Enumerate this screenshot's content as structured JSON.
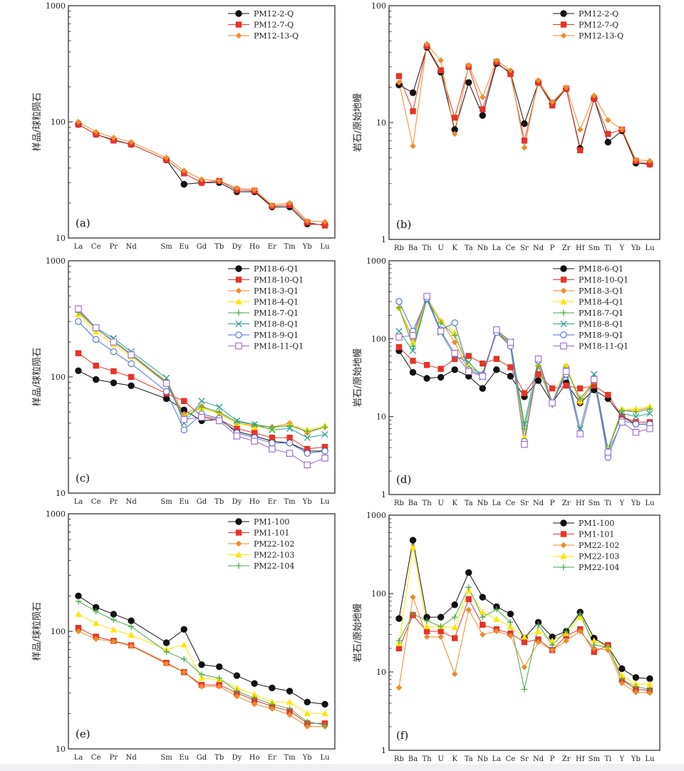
{
  "colors": {
    "black": "#111111",
    "red": "#e8332a",
    "orange": "#f08a2c",
    "yellow": "#ffe600",
    "green": "#4aa84a",
    "teal": "#2f9e8f",
    "blue": "#4a6fd8",
    "purple": "#9a6ac8"
  },
  "chart_data": [
    {
      "id": "a",
      "type": "line",
      "panel_label": "(a)",
      "ylabel": "样品/球粒陨石",
      "yscale": "log",
      "ylim": [
        10,
        1000
      ],
      "yticks": [
        "10",
        "100",
        "1000"
      ],
      "categories": [
        "La",
        "Ce",
        "Pr",
        "Nd",
        "",
        "Sm",
        "Eu",
        "Gd",
        "Tb",
        "Dy",
        "Ho",
        "Er",
        "Tm",
        "Yb",
        "Lu"
      ],
      "series": [
        {
          "name": "PM12-2-Q",
          "color": "black",
          "marker": "circle",
          "values": [
            95,
            78,
            70,
            64,
            null,
            47,
            29,
            30,
            30,
            25,
            25,
            18.5,
            18.5,
            13.2,
            13
          ]
        },
        {
          "name": "PM12-7-Q",
          "color": "red",
          "marker": "square",
          "values": [
            95,
            78,
            69,
            64,
            null,
            47,
            36,
            30,
            31,
            26,
            25.5,
            18.8,
            19.2,
            13.6,
            12.8
          ]
        },
        {
          "name": "PM12-13-Q",
          "color": "orange",
          "marker": "diamond",
          "values": [
            100,
            82,
            73,
            67,
            null,
            49,
            38,
            32,
            31,
            27,
            26,
            19.2,
            20,
            14,
            13.8
          ]
        }
      ]
    },
    {
      "id": "b",
      "type": "line",
      "panel_label": "(b)",
      "ylabel": "岩石/原始地幔",
      "yscale": "log",
      "ylim": [
        1,
        100
      ],
      "yticks": [
        "1",
        "10",
        "100"
      ],
      "categories": [
        "Rb",
        "Ba",
        "Th",
        "U",
        "K",
        "Ta",
        "Nb",
        "La",
        "Ce",
        "Sr",
        "Nd",
        "P",
        "Zr",
        "Hf",
        "Sm",
        "Ti",
        "Y",
        "Yb",
        "Lu"
      ],
      "series": [
        {
          "name": "PM12-2-Q",
          "color": "black",
          "marker": "circle",
          "values": [
            21,
            18,
            44,
            27,
            8.7,
            22,
            11.5,
            32,
            27,
            9.8,
            22,
            14.5,
            19.5,
            6,
            16,
            6.8,
            8.5,
            4.5,
            4.4
          ]
        },
        {
          "name": "PM12-7-Q",
          "color": "red",
          "marker": "square",
          "values": [
            25,
            12.5,
            45,
            28,
            11,
            30,
            13,
            33,
            26,
            7,
            22,
            14,
            19.5,
            5.8,
            16,
            8,
            8.7,
            4.7,
            4.4
          ]
        },
        {
          "name": "PM12-13-Q",
          "color": "orange",
          "marker": "diamond",
          "values": [
            22,
            6.3,
            47,
            34,
            8,
            31,
            16.5,
            34,
            28,
            6.1,
            23,
            15,
            20,
            8.7,
            17,
            10.5,
            8.8,
            4.8,
            4.7
          ]
        }
      ]
    },
    {
      "id": "c",
      "type": "line",
      "panel_label": "(c)",
      "ylabel": "样品/球粒陨石",
      "yscale": "log",
      "ylim": [
        10,
        1000
      ],
      "yticks": [
        "10",
        "100",
        "1000"
      ],
      "categories": [
        "La",
        "Ce",
        "Pr",
        "Nd",
        "",
        "Sm",
        "Eu",
        "Gd",
        "Tb",
        "Dy",
        "Ho",
        "Er",
        "Tm",
        "Yb",
        "Lu"
      ],
      "series": [
        {
          "name": "PM18-6-Q1",
          "color": "black",
          "marker": "circle",
          "values": [
            113,
            95,
            89,
            84,
            null,
            65,
            52,
            42,
            43,
            34,
            31,
            28,
            27,
            23,
            23
          ]
        },
        {
          "name": "PM18-10-Q1",
          "color": "red",
          "marker": "square",
          "values": [
            160,
            125,
            112,
            100,
            null,
            72,
            62,
            46,
            43,
            36,
            33,
            30,
            30,
            24,
            25
          ]
        },
        {
          "name": "PM18-3-Q1",
          "color": "orange",
          "marker": "diamond",
          "values": [
            370,
            265,
            200,
            155,
            null,
            92,
            48,
            56,
            49,
            40,
            38,
            37,
            40,
            33,
            37
          ]
        },
        {
          "name": "PM18-4-Q1",
          "color": "yellow",
          "marker": "triangle",
          "values": [
            345,
            245,
            190,
            150,
            null,
            88,
            46,
            54,
            48,
            40,
            37,
            36,
            39,
            35,
            38
          ]
        },
        {
          "name": "PM18-7-Q1",
          "color": "green",
          "marker": "plus",
          "values": [
            360,
            260,
            205,
            158,
            null,
            90,
            45,
            55,
            50,
            41,
            39,
            37,
            38,
            34,
            37
          ]
        },
        {
          "name": "PM18-8-Q1",
          "color": "teal",
          "marker": "x",
          "values": [
            380,
            265,
            215,
            165,
            null,
            98,
            40,
            62,
            55,
            42,
            39,
            35,
            36,
            30,
            32
          ]
        },
        {
          "name": "PM18-9-Q1",
          "color": "blue",
          "marker": "circle-open",
          "values": [
            300,
            210,
            165,
            130,
            null,
            75,
            35,
            48,
            44,
            33,
            30,
            27,
            27,
            22,
            23
          ]
        },
        {
          "name": "PM18-11-Q1",
          "color": "purple",
          "marker": "square-open",
          "values": [
            385,
            265,
            200,
            155,
            null,
            88,
            43,
            45,
            42,
            31,
            28,
            24,
            22,
            17.5,
            20
          ]
        }
      ]
    },
    {
      "id": "d",
      "type": "line",
      "panel_label": "(d)",
      "ylabel": "岩石/原始地幔",
      "yscale": "log",
      "ylim": [
        1,
        1000
      ],
      "yticks": [
        "1",
        "10",
        "100",
        "1000"
      ],
      "categories": [
        "Rb",
        "Ba",
        "Th",
        "U",
        "K",
        "Ta",
        "Nb",
        "La",
        "Ce",
        "Sr",
        "Nd",
        "P",
        "Zr",
        "Hf",
        "Sm",
        "Ti",
        "Y",
        "Yb",
        "Lu"
      ],
      "series": [
        {
          "name": "PM18-6-Q1",
          "color": "black",
          "marker": "circle",
          "values": [
            70,
            37,
            31,
            32,
            40,
            33,
            23,
            40,
            33,
            18,
            29,
            15,
            27,
            15,
            22,
            17,
            10,
            8,
            8
          ]
        },
        {
          "name": "PM18-10-Q1",
          "color": "red",
          "marker": "square",
          "values": [
            78,
            52,
            46,
            41,
            55,
            60,
            48,
            55,
            43,
            20,
            35,
            23,
            25,
            23,
            25,
            19,
            10,
            8.5,
            8.5
          ]
        },
        {
          "name": "PM18-3-Q1",
          "color": "orange",
          "marker": "diamond",
          "values": [
            250,
            100,
            340,
            170,
            90,
            38,
            33,
            120,
            85,
            5,
            45,
            15,
            45,
            15,
            28,
            3.8,
            12,
            12,
            13
          ]
        },
        {
          "name": "PM18-4-Q1",
          "color": "yellow",
          "marker": "triangle",
          "values": [
            250,
            90,
            330,
            170,
            120,
            45,
            35,
            125,
            88,
            5.5,
            48,
            15,
            45,
            16,
            30,
            3.9,
            12.5,
            12.5,
            13.5
          ]
        },
        {
          "name": "PM18-7-Q1",
          "color": "green",
          "marker": "plus",
          "values": [
            250,
            80,
            320,
            160,
            110,
            42,
            36,
            125,
            85,
            7,
            45,
            14,
            40,
            17,
            28,
            3.6,
            12,
            11.5,
            12.5
          ]
        },
        {
          "name": "PM18-8-Q1",
          "color": "teal",
          "marker": "x",
          "values": [
            125,
            70,
            320,
            120,
            60,
            50,
            32,
            130,
            92,
            8,
            55,
            15,
            40,
            7,
            35,
            3.8,
            11,
            10,
            11
          ]
        },
        {
          "name": "PM18-9-Q1",
          "color": "blue",
          "marker": "circle-open",
          "values": [
            300,
            125,
            330,
            130,
            160,
            40,
            34,
            120,
            80,
            4.8,
            52,
            15,
            35,
            6,
            30,
            3,
            9,
            8,
            8
          ]
        },
        {
          "name": "PM18-11-Q1",
          "color": "purple",
          "marker": "square-open",
          "values": [
            105,
            110,
            350,
            125,
            65,
            38,
            33,
            130,
            90,
            4.4,
            55,
            15,
            38,
            6,
            30,
            3.5,
            8.5,
            6.3,
            7
          ]
        }
      ]
    },
    {
      "id": "e",
      "type": "line",
      "panel_label": "(e)",
      "ylabel": "样品/球粒陨石",
      "yscale": "log",
      "ylim": [
        10,
        1000
      ],
      "yticks": [
        "10",
        "100",
        "1000"
      ],
      "categories": [
        "La",
        "Ce",
        "Pr",
        "Nd",
        "",
        "Sm",
        "Eu",
        "Gd",
        "Tb",
        "Dy",
        "Ho",
        "Er",
        "Tm",
        "Yb",
        "Lu"
      ],
      "series": [
        {
          "name": "PM1-100",
          "color": "black",
          "marker": "circle",
          "values": [
            200,
            160,
            140,
            123,
            null,
            80,
            104,
            52,
            50,
            42,
            36,
            33,
            31,
            25,
            24
          ]
        },
        {
          "name": "PM1-101",
          "color": "red",
          "marker": "square",
          "values": [
            107,
            90,
            83,
            76,
            null,
            54,
            45,
            35,
            35,
            30,
            26,
            23,
            21,
            16.5,
            16.5
          ]
        },
        {
          "name": "PM22-102",
          "color": "orange",
          "marker": "diamond",
          "values": [
            100,
            86,
            82,
            75,
            null,
            53,
            45,
            34,
            34,
            28,
            24,
            22,
            19.5,
            15.5,
            15.5
          ]
        },
        {
          "name": "PM22-103",
          "color": "yellow",
          "marker": "triangle",
          "values": [
            140,
            117,
            103,
            93,
            null,
            70,
            77,
            40,
            39,
            33,
            29,
            25,
            25,
            20,
            20
          ]
        },
        {
          "name": "PM22-104",
          "color": "green",
          "marker": "plus",
          "values": [
            180,
            148,
            125,
            110,
            null,
            67,
            58,
            43,
            40,
            31,
            27,
            24,
            22,
            17,
            16
          ]
        }
      ]
    },
    {
      "id": "f",
      "type": "line",
      "panel_label": "(f)",
      "ylabel": "岩石/原始地幔",
      "yscale": "log",
      "ylim": [
        1,
        1000
      ],
      "yticks": [
        "1",
        "10",
        "100",
        "1000"
      ],
      "categories": [
        "Rb",
        "Ba",
        "Th",
        "U",
        "K",
        "Ta",
        "Nb",
        "La",
        "Ce",
        "Sr",
        "Nd",
        "P",
        "Zr",
        "Hf",
        "Sm",
        "Ti",
        "Y",
        "Yb",
        "Lu"
      ],
      "series": [
        {
          "name": "PM1-100",
          "color": "black",
          "marker": "circle",
          "values": [
            48,
            480,
            50,
            50,
            72,
            185,
            90,
            68,
            55,
            27,
            43,
            28,
            33,
            58,
            27,
            21,
            11,
            8.5,
            8.2
          ]
        },
        {
          "name": "PM1-101",
          "color": "red",
          "marker": "square",
          "values": [
            20,
            53,
            33,
            33,
            27,
            85,
            40,
            35,
            31,
            24,
            26,
            19,
            29,
            35,
            18,
            22,
            8,
            6,
            5.8
          ]
        },
        {
          "name": "PM22-102",
          "color": "orange",
          "marker": "diamond",
          "values": [
            6.3,
            90,
            28,
            28,
            9.4,
            62,
            30,
            33,
            29,
            11.5,
            24,
            19,
            25,
            33,
            20,
            19,
            7.2,
            5.5,
            5.4
          ]
        },
        {
          "name": "PM22-103",
          "color": "yellow",
          "marker": "triangle",
          "values": [
            23,
            390,
            38,
            38,
            37,
            110,
            58,
            47,
            38,
            28,
            33,
            25,
            31,
            50,
            25,
            21,
            9,
            7,
            7
          ]
        },
        {
          "name": "PM22-104",
          "color": "green",
          "marker": "plus",
          "values": [
            25,
            55,
            45,
            38,
            50,
            120,
            50,
            63,
            43,
            6,
            40,
            22,
            33,
            55,
            22,
            21,
            8,
            6.5,
            6
          ]
        }
      ]
    }
  ]
}
